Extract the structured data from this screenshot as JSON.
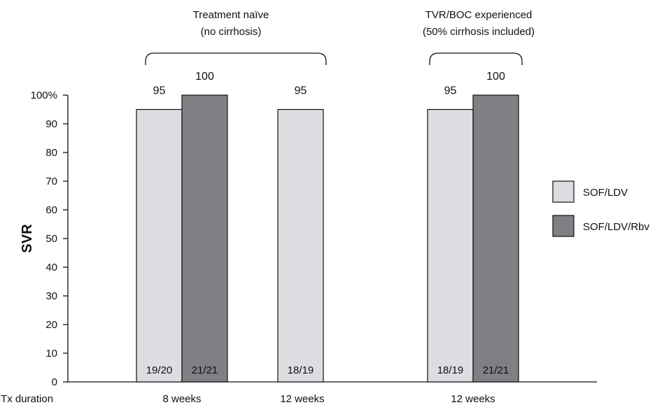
{
  "chart_data": {
    "type": "bar",
    "ylabel": "SVR",
    "ylim": [
      0,
      100
    ],
    "yticks": [
      "0",
      "10",
      "20",
      "30",
      "40",
      "50",
      "60",
      "70",
      "80",
      "90",
      "100%"
    ],
    "x_axis_row_label": "Tx duration",
    "series": [
      {
        "name": "SOF/LDV",
        "color": "#dcdde0"
      },
      {
        "name": "SOF/LDV/Rbv",
        "color": "#7f8083"
      }
    ],
    "bars": [
      {
        "series": "SOF/LDV",
        "value": 95,
        "label": "95",
        "fraction": "19/20"
      },
      {
        "series": "SOF/LDV/Rbv",
        "value": 100,
        "label": "100",
        "fraction": "21/21"
      },
      {
        "series": "SOF/LDV",
        "value": 95,
        "label": "95",
        "fraction": "18/19"
      },
      {
        "series": "SOF/LDV",
        "value": 95,
        "label": "95",
        "fraction": "18/19"
      },
      {
        "series": "SOF/LDV/Rbv",
        "value": 100,
        "label": "100",
        "fraction": "21/21"
      }
    ],
    "durations": [
      "8 weeks",
      "12 weeks",
      "12 weeks"
    ],
    "groups": [
      {
        "line1": "Treatment naïve",
        "line2": "(no cirrhosis)"
      },
      {
        "line1": "TVR/BOC experienced",
        "line2": "(50% cirrhosis included)"
      }
    ]
  }
}
